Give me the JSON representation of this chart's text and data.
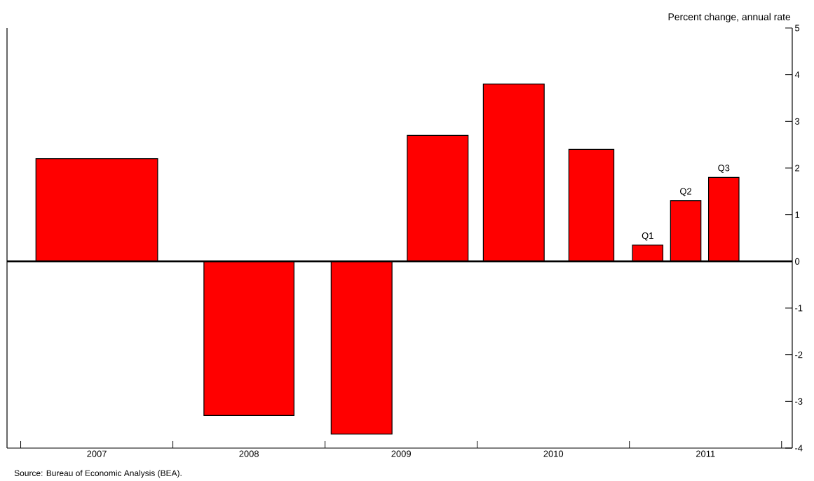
{
  "chart_data": {
    "type": "bar",
    "ylabel": "Percent change, annual rate",
    "x": [
      2007.5,
      2008.5,
      2009.24,
      2009.74,
      2010.24,
      2010.75,
      2011.12,
      2011.37,
      2011.62
    ],
    "values": [
      2.2,
      -3.3,
      -3.7,
      2.7,
      3.8,
      2.4,
      0.35,
      1.3,
      1.8
    ],
    "color": "#ff0000",
    "xlim": [
      2006.91,
      2012.07
    ],
    "xticks": [
      {
        "value": 2007,
        "label": null
      },
      {
        "value": 2008,
        "label": null
      },
      {
        "value": 2009,
        "label": null
      },
      {
        "value": 2010,
        "label": null
      },
      {
        "value": 2011,
        "label": null
      },
      {
        "value": 2012,
        "label": null
      },
      {
        "value": 2007.5,
        "label": "2007"
      },
      {
        "value": 2008.5,
        "label": "2008"
      },
      {
        "value": 2009.5,
        "label": "2009"
      },
      {
        "value": 2010.5,
        "label": "2010"
      },
      {
        "value": 2011.5,
        "label": "2011"
      }
    ],
    "ylim": [
      -4,
      5
    ],
    "yticks": [
      -4,
      -3,
      -2,
      -1,
      0,
      1,
      2,
      3,
      4,
      5
    ],
    "ref_lines": [
      {
        "axis": "y",
        "value": 0,
        "color": "#000000"
      }
    ],
    "annotations": [
      {
        "text": "Q1",
        "x": 2011.12,
        "y": 0.35
      },
      {
        "text": "Q2",
        "x": 2011.37,
        "y": 1.3
      },
      {
        "text": "Q3",
        "x": 2011.62,
        "y": 1.8
      },
      "Source:  Bureau of Economic Analysis (BEA)."
    ]
  }
}
